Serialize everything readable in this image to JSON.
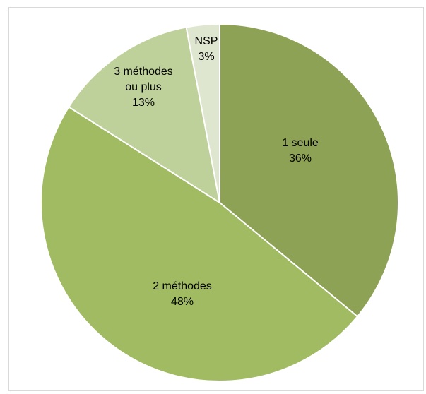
{
  "chart_data": {
    "type": "pie",
    "title": "",
    "slices": [
      {
        "label_lines": [
          "1 seule",
          "36%"
        ],
        "value": 36,
        "color": "#8da255"
      },
      {
        "label_lines": [
          "2 méthodes",
          "48%"
        ],
        "value": 48,
        "color": "#a0bb62"
      },
      {
        "label_lines": [
          "3 méthodes",
          "ou plus",
          "13%"
        ],
        "value": 13,
        "color": "#bfd19a"
      },
      {
        "label_lines": [
          "NSP",
          "3%"
        ],
        "value": 3,
        "color": "#dfe6cf"
      }
    ],
    "start_angle": "12 o'clock",
    "direction": "clockwise",
    "legend": "none"
  }
}
